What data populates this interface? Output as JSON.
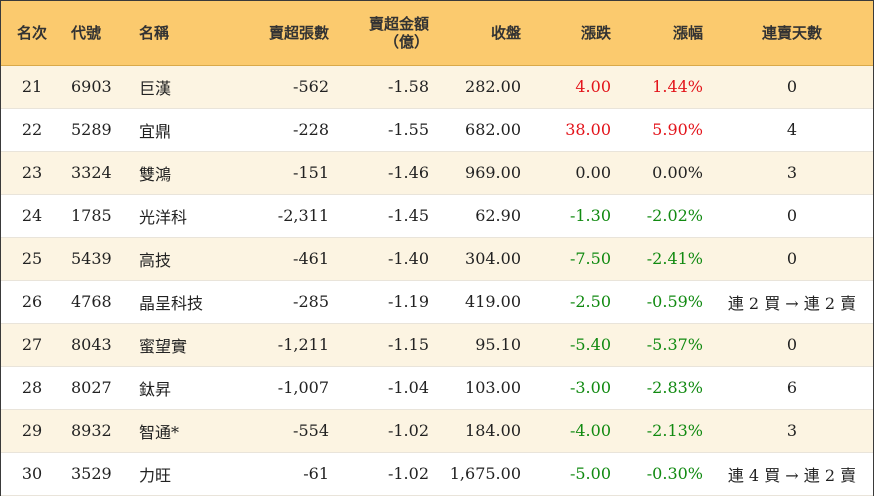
{
  "table": {
    "headers": {
      "rank": "名次",
      "code": "代號",
      "name": "名稱",
      "sell_lots": "賣超張數",
      "sell_amount_line1": "賣超金額",
      "sell_amount_line2": "（億）",
      "close": "收盤",
      "change": "漲跌",
      "change_pct": "漲幅",
      "streak": "連賣天數"
    },
    "rows": [
      {
        "rank": "21",
        "code": "6903",
        "name": "巨漢",
        "sell_lots": "-562",
        "sell_amount": "-1.58",
        "close": "282.00",
        "change": "4.00",
        "change_pct": "1.44%",
        "streak": "0",
        "trend": "up"
      },
      {
        "rank": "22",
        "code": "5289",
        "name": "宜鼎",
        "sell_lots": "-228",
        "sell_amount": "-1.55",
        "close": "682.00",
        "change": "38.00",
        "change_pct": "5.90%",
        "streak": "4",
        "trend": "up"
      },
      {
        "rank": "23",
        "code": "3324",
        "name": "雙鴻",
        "sell_lots": "-151",
        "sell_amount": "-1.46",
        "close": "969.00",
        "change": "0.00",
        "change_pct": "0.00%",
        "streak": "3",
        "trend": "flat"
      },
      {
        "rank": "24",
        "code": "1785",
        "name": "光洋科",
        "sell_lots": "-2,311",
        "sell_amount": "-1.45",
        "close": "62.90",
        "change": "-1.30",
        "change_pct": "-2.02%",
        "streak": "0",
        "trend": "down"
      },
      {
        "rank": "25",
        "code": "5439",
        "name": "高技",
        "sell_lots": "-461",
        "sell_amount": "-1.40",
        "close": "304.00",
        "change": "-7.50",
        "change_pct": "-2.41%",
        "streak": "0",
        "trend": "down"
      },
      {
        "rank": "26",
        "code": "4768",
        "name": "晶呈科技",
        "sell_lots": "-285",
        "sell_amount": "-1.19",
        "close": "419.00",
        "change": "-2.50",
        "change_pct": "-0.59%",
        "streak": "連 2 買 → 連 2 賣",
        "trend": "down"
      },
      {
        "rank": "27",
        "code": "8043",
        "name": "蜜望實",
        "sell_lots": "-1,211",
        "sell_amount": "-1.15",
        "close": "95.10",
        "change": "-5.40",
        "change_pct": "-5.37%",
        "streak": "0",
        "trend": "down"
      },
      {
        "rank": "28",
        "code": "8027",
        "name": "鈦昇",
        "sell_lots": "-1,007",
        "sell_amount": "-1.04",
        "close": "103.00",
        "change": "-3.00",
        "change_pct": "-2.83%",
        "streak": "6",
        "trend": "down"
      },
      {
        "rank": "29",
        "code": "8932",
        "name": "智通*",
        "sell_lots": "-554",
        "sell_amount": "-1.02",
        "close": "184.00",
        "change": "-4.00",
        "change_pct": "-2.13%",
        "streak": "3",
        "trend": "down"
      },
      {
        "rank": "30",
        "code": "3529",
        "name": "力旺",
        "sell_lots": "-61",
        "sell_amount": "-1.02",
        "close": "1,675.00",
        "change": "-5.00",
        "change_pct": "-0.30%",
        "streak": "連 4 買 → 連 2 賣",
        "trend": "down"
      }
    ]
  },
  "colors": {
    "header_bg": "#fbca6e",
    "odd_row_bg": "#fcf4e2",
    "up": "#e3141b",
    "down": "#118a11"
  }
}
